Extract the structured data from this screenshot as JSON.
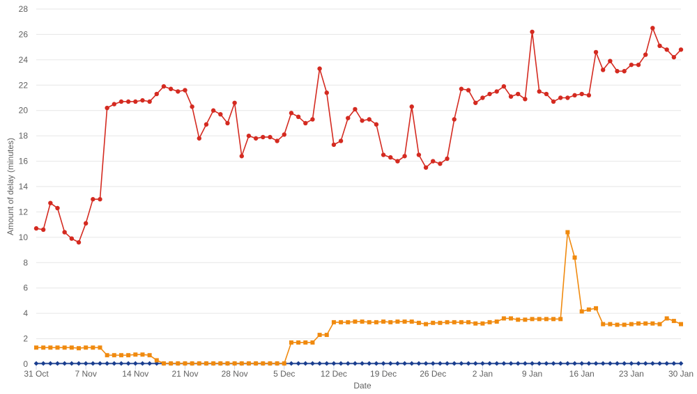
{
  "chart_data": {
    "type": "line",
    "xlabel": "Date",
    "ylabel": "Amount of delay (minutes)",
    "ylim": [
      0,
      28
    ],
    "yticks": [
      0,
      2,
      4,
      6,
      8,
      10,
      12,
      14,
      16,
      18,
      20,
      22,
      24,
      26,
      28
    ],
    "grid": true,
    "x_start_date": "2019-10-31",
    "x_end_date": "2020-01-30",
    "xticks": [
      {
        "label": "31 Oct",
        "date": "2019-10-31"
      },
      {
        "label": "7 Nov",
        "date": "2019-11-07"
      },
      {
        "label": "14 Nov",
        "date": "2019-11-14"
      },
      {
        "label": "21 Nov",
        "date": "2019-11-21"
      },
      {
        "label": "28 Nov",
        "date": "2019-11-28"
      },
      {
        "label": "5 Dec",
        "date": "2019-12-05"
      },
      {
        "label": "12 Dec",
        "date": "2019-12-12"
      },
      {
        "label": "19 Dec",
        "date": "2019-12-19"
      },
      {
        "label": "26 Dec",
        "date": "2019-12-26"
      },
      {
        "label": "2 Jan",
        "date": "2020-01-02"
      },
      {
        "label": "9 Jan",
        "date": "2020-01-09"
      },
      {
        "label": "16 Jan",
        "date": "2020-01-16"
      },
      {
        "label": "23 Jan",
        "date": "2020-01-23"
      },
      {
        "label": "30 Jan",
        "date": "2020-01-30"
      }
    ],
    "series": [
      {
        "color": "#d42a20",
        "marker": "circle",
        "values": [
          10.7,
          10.6,
          12.7,
          12.3,
          10.4,
          9.9,
          9.6,
          11.1,
          13.0,
          13.0,
          20.2,
          20.5,
          20.7,
          20.7,
          20.7,
          20.8,
          20.7,
          21.3,
          21.9,
          21.7,
          21.5,
          21.6,
          20.3,
          17.8,
          18.9,
          20.0,
          19.7,
          19.0,
          20.6,
          16.4,
          18.0,
          17.8,
          17.9,
          17.9,
          17.6,
          18.1,
          19.8,
          19.5,
          19.0,
          19.3,
          23.3,
          21.4,
          17.3,
          17.6,
          19.4,
          20.1,
          19.2,
          19.3,
          18.9,
          16.5,
          16.3,
          16.0,
          16.4,
          20.3,
          16.5,
          15.5,
          16.0,
          15.8,
          16.2,
          19.3,
          21.7,
          21.6,
          20.6,
          21.0,
          21.3,
          21.5,
          21.9,
          21.1,
          21.3,
          20.9,
          26.2,
          21.5,
          21.3,
          20.7,
          21.0,
          21.0,
          21.2,
          21.3,
          21.2,
          24.6,
          23.2,
          23.9,
          23.1,
          23.1,
          23.6,
          23.6,
          24.4,
          26.5,
          25.1,
          24.8,
          24.2,
          24.8
        ]
      },
      {
        "color": "#f08a0f",
        "marker": "square",
        "values": [
          1.3,
          1.3,
          1.3,
          1.3,
          1.3,
          1.3,
          1.25,
          1.3,
          1.3,
          1.3,
          0.7,
          0.7,
          0.7,
          0.7,
          0.75,
          0.75,
          0.7,
          0.3,
          0.05,
          0.05,
          0.05,
          0.05,
          0.05,
          0.05,
          0.05,
          0.05,
          0.05,
          0.05,
          0.05,
          0.05,
          0.05,
          0.05,
          0.05,
          0.05,
          0.05,
          0.05,
          1.7,
          1.7,
          1.7,
          1.7,
          2.3,
          2.3,
          3.3,
          3.3,
          3.3,
          3.35,
          3.35,
          3.3,
          3.3,
          3.35,
          3.3,
          3.35,
          3.35,
          3.35,
          3.25,
          3.15,
          3.25,
          3.25,
          3.3,
          3.3,
          3.3,
          3.3,
          3.2,
          3.2,
          3.3,
          3.35,
          3.6,
          3.6,
          3.5,
          3.5,
          3.55,
          3.55,
          3.55,
          3.55,
          3.55,
          10.4,
          8.4,
          4.15,
          4.3,
          4.4,
          3.15,
          3.15,
          3.1,
          3.1,
          3.15,
          3.2,
          3.2,
          3.2,
          3.15,
          3.6,
          3.4,
          3.15
        ]
      },
      {
        "color": "#1a3e8f",
        "marker": "diamond",
        "values": [
          0.05,
          0.05,
          0.05,
          0.05,
          0.05,
          0.05,
          0.05,
          0.05,
          0.05,
          0.05,
          0.05,
          0.05,
          0.05,
          0.05,
          0.05,
          0.05,
          0.05,
          0.05,
          0.05,
          0.05,
          0.05,
          0.05,
          0.05,
          0.05,
          0.05,
          0.05,
          0.05,
          0.05,
          0.05,
          0.05,
          0.05,
          0.05,
          0.05,
          0.05,
          0.05,
          0.05,
          0.05,
          0.05,
          0.05,
          0.05,
          0.05,
          0.05,
          0.05,
          0.05,
          0.05,
          0.05,
          0.05,
          0.05,
          0.05,
          0.05,
          0.05,
          0.05,
          0.05,
          0.05,
          0.05,
          0.05,
          0.05,
          0.05,
          0.05,
          0.05,
          0.05,
          0.05,
          0.05,
          0.05,
          0.05,
          0.05,
          0.05,
          0.05,
          0.05,
          0.05,
          0.05,
          0.05,
          0.05,
          0.05,
          0.05,
          0.05,
          0.05,
          0.05,
          0.05,
          0.05,
          0.05,
          0.05,
          0.05,
          0.05,
          0.05,
          0.05,
          0.05,
          0.05,
          0.05,
          0.05,
          0.05,
          0.05
        ]
      }
    ]
  }
}
